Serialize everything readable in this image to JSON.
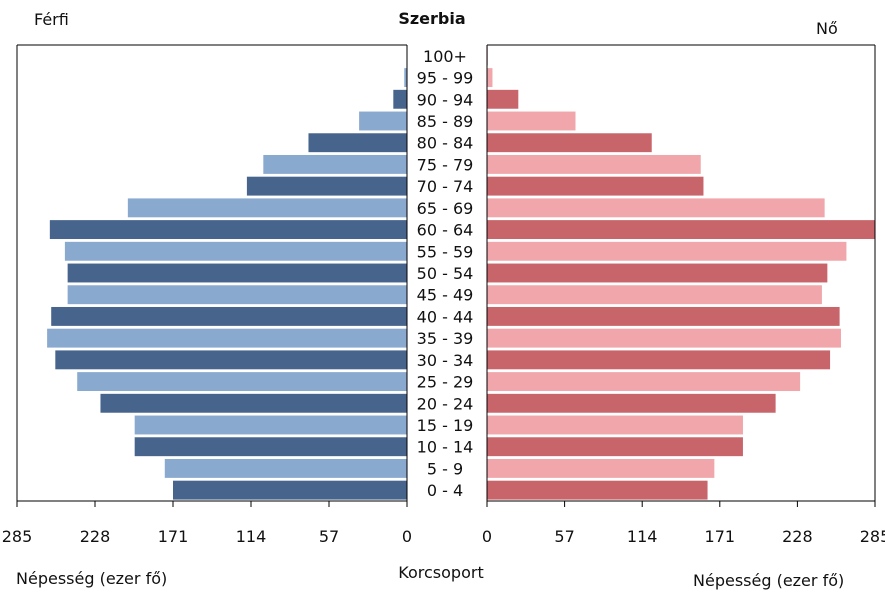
{
  "chart_data": {
    "type": "bar",
    "title": "Szerbia",
    "left_label": "Férfi",
    "right_label": "Nő",
    "center_label": "Korcsoport",
    "xlabel_left": "Népesség (ezer fő)",
    "xlabel_right": "Népesség (ezer fő)",
    "xlim": [
      0,
      285
    ],
    "ticks": [
      "285",
      "228",
      "171",
      "114",
      "57",
      "0"
    ],
    "ticks_right": [
      "0",
      "57",
      "114",
      "171",
      "228",
      "285"
    ],
    "categories": [
      "100+",
      "95 - 99",
      "90 - 94",
      "85 - 89",
      "80 - 84",
      "75 - 79",
      "70 - 74",
      "65 - 69",
      "60 - 64",
      "55 - 59",
      "50 - 54",
      "45 - 49",
      "40 - 44",
      "35 - 39",
      "30 - 34",
      "25 - 29",
      "20 - 24",
      "15 - 19",
      "10 - 14",
      "5 - 9",
      "0 - 4"
    ],
    "series": [
      {
        "name": "Férfi",
        "values": [
          0.3,
          2,
          10,
          35,
          72,
          105,
          117,
          204,
          261,
          250,
          248,
          248,
          260,
          263,
          257,
          241,
          224,
          199,
          199,
          177,
          171
        ]
      },
      {
        "name": "Nő",
        "values": [
          0.5,
          4,
          23,
          65,
          121,
          157,
          159,
          248,
          285,
          264,
          250,
          246,
          259,
          260,
          252,
          230,
          212,
          188,
          188,
          167,
          162
        ]
      }
    ],
    "colors": {
      "male_dark": "#46648c",
      "male_light": "#8aa9cf",
      "female_dark": "#c8656a",
      "female_light": "#f0a6aa"
    },
    "grid": false
  }
}
